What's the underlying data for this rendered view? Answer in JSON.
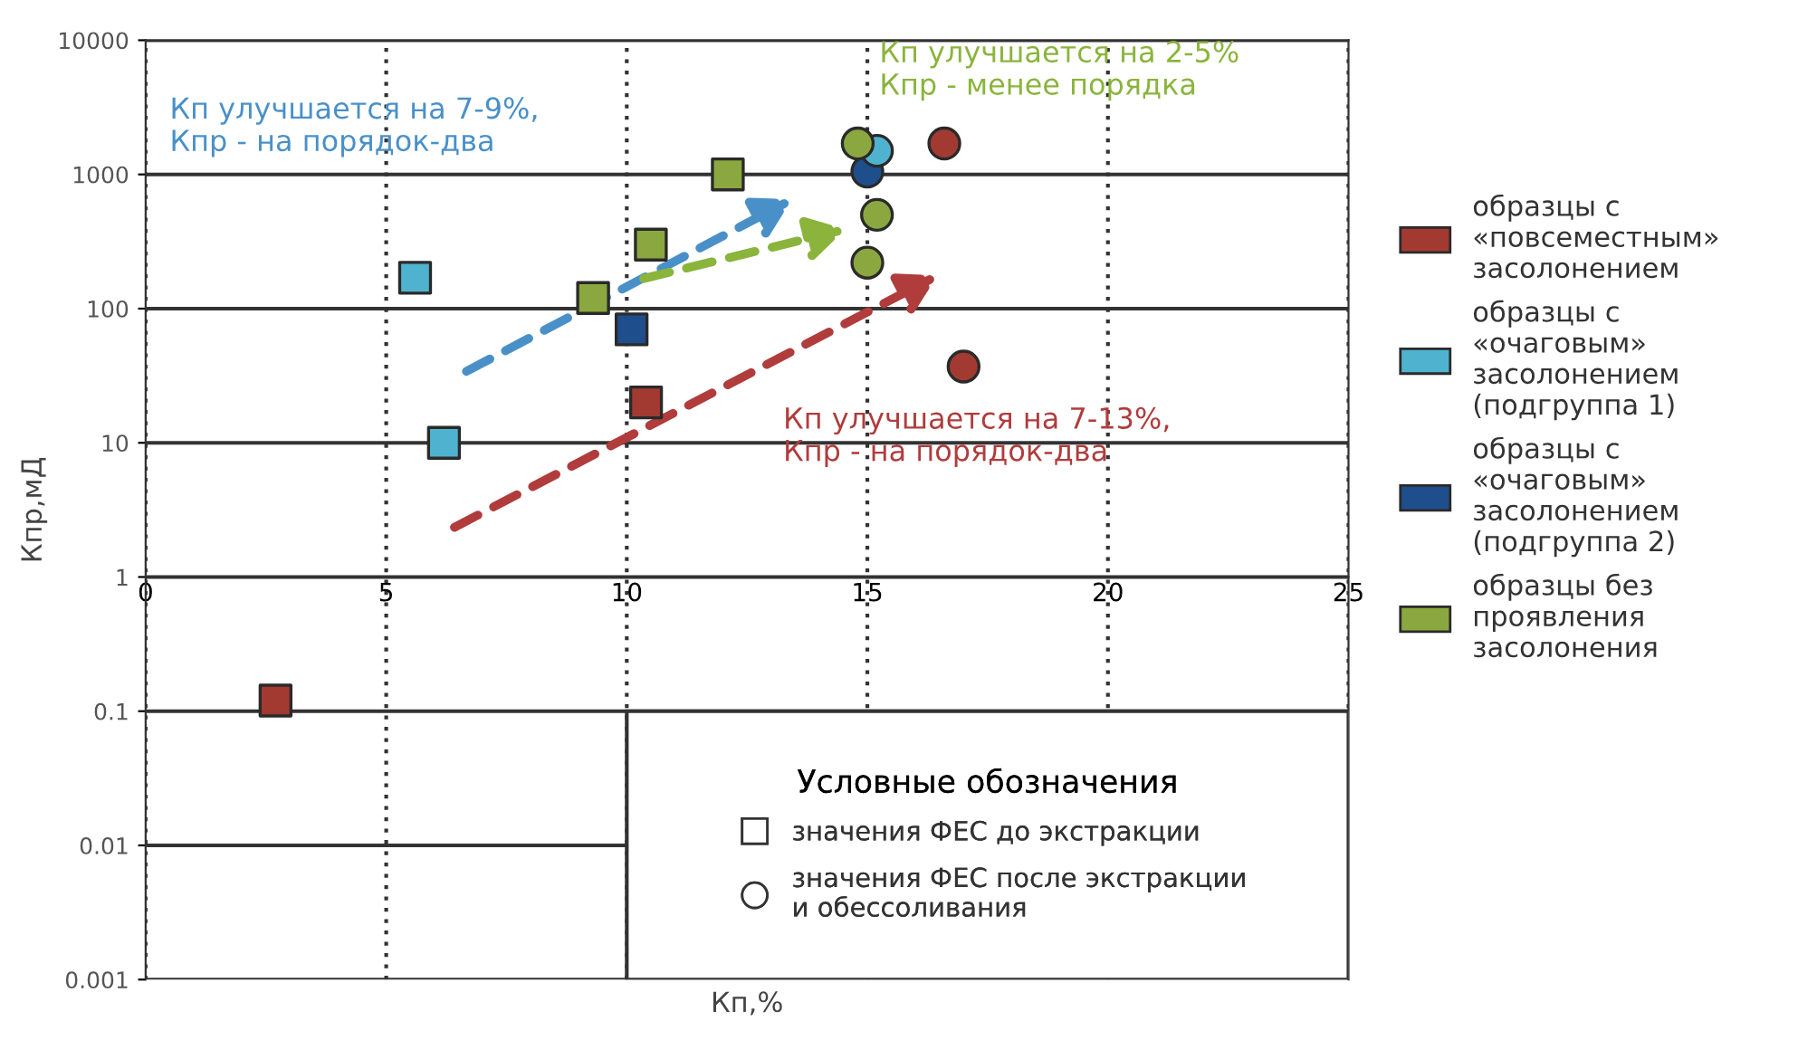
{
  "chart_data": {
    "type": "scatter",
    "xlabel": "Кп,%",
    "ylabel": "Кпр,мД",
    "xlim": [
      0,
      25
    ],
    "xticks": [
      0,
      5,
      10,
      15,
      20,
      25
    ],
    "ylim": [
      0.001,
      10000
    ],
    "yticks": [
      0.001,
      0.01,
      0.1,
      1,
      10,
      100,
      1000,
      10000
    ],
    "log": "y",
    "grid": true,
    "legend": "right",
    "legend_title": "Условные обозначения",
    "annotations": [
      "Кп улучшается на 7-9%,\nКпр - на порядок-два",
      "Кп улучшается на 2-5%\nКпр - менее порядка",
      "Кп улучшается на 7-13%,\nКпр - на порядок-два",
      "значения ФЕС до экстракции",
      "значения ФЕС после экстракции\nи обессоливания"
    ],
    "series": [
      {
        "name": "образцы с\n«повсеместным»\nзасолонением",
        "color": "#a33a32",
        "marker": "square",
        "x": [
          2.7,
          10.4
        ],
        "values": [
          0.12,
          20
        ]
      },
      {
        "name": "образцы с\n«очаговым»\nзасолонением\n(подгруппа 1)",
        "color": "#4fb3cf",
        "marker": "square",
        "x": [
          5.6,
          6.2
        ],
        "values": [
          170,
          10
        ]
      },
      {
        "name": "образцы с\n«очаговым»\nзасолонением\n(подгруппа 2)",
        "color": "#1f4e8c",
        "marker": "square",
        "x": [
          10.1
        ],
        "values": [
          70
        ]
      },
      {
        "name": "образцы без\nпроявления\nзасолонения",
        "color": "#8aa83f",
        "marker": "square",
        "x": [
          9.3,
          10.5,
          12.1
        ],
        "values": [
          120,
          300,
          1000
        ]
      },
      {
        "color": "#a33a32",
        "marker": "circle",
        "x": [
          16.6,
          17.0
        ],
        "values": [
          1700,
          37
        ]
      },
      {
        "color": "#1f4e8c",
        "marker": "circle",
        "x": [
          15.0
        ],
        "values": [
          1050
        ]
      },
      {
        "color": "#4fb3cf",
        "marker": "circle",
        "x": [
          15.2
        ],
        "values": [
          1500
        ]
      },
      {
        "color": "#8aa83f",
        "marker": "circle",
        "x": [
          14.8,
          15.2,
          15.0
        ],
        "values": [
          1700,
          500,
          220
        ]
      }
    ]
  }
}
